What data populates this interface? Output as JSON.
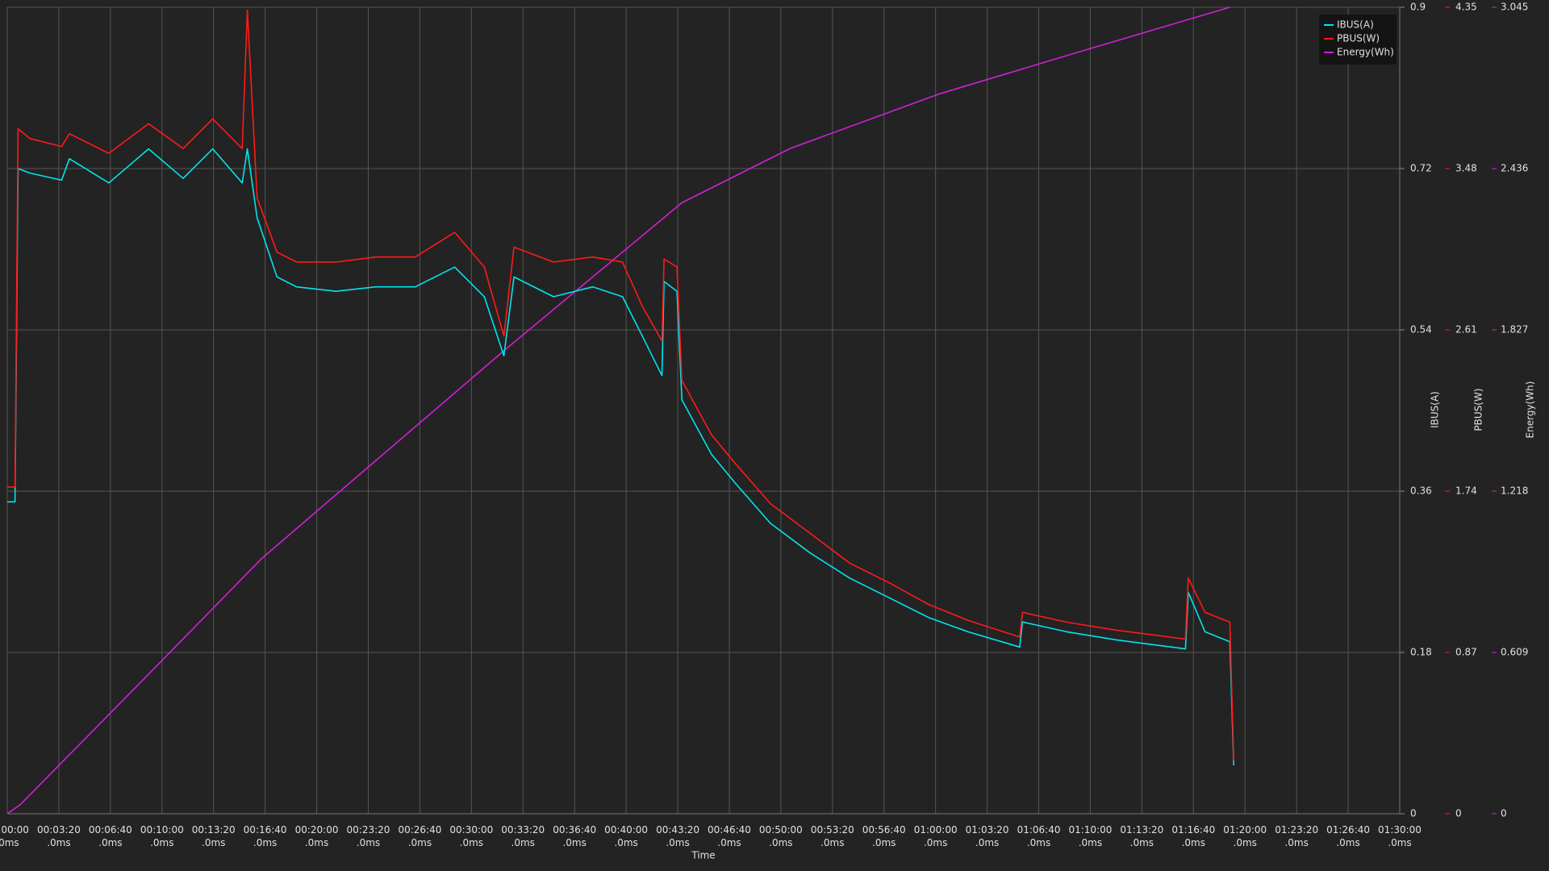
{
  "chart_data": {
    "type": "line",
    "xlabel": "Time",
    "xlim": [
      0,
      5400
    ],
    "xticks": [
      {
        "value": 0,
        "label": "00:00:00\n.0ms"
      },
      {
        "value": 200,
        "label": "00:03:20\n.0ms"
      },
      {
        "value": 400,
        "label": "00:06:40\n.0ms"
      },
      {
        "value": 600,
        "label": "00:10:00\n.0ms"
      },
      {
        "value": 800,
        "label": "00:13:20\n.0ms"
      },
      {
        "value": 1000,
        "label": "00:16:40\n.0ms"
      },
      {
        "value": 1200,
        "label": "00:20:00\n.0ms"
      },
      {
        "value": 1400,
        "label": "00:23:20\n.0ms"
      },
      {
        "value": 1600,
        "label": "00:26:40\n.0ms"
      },
      {
        "value": 1800,
        "label": "00:30:00\n.0ms"
      },
      {
        "value": 2000,
        "label": "00:33:20\n.0ms"
      },
      {
        "value": 2200,
        "label": "00:36:40\n.0ms"
      },
      {
        "value": 2400,
        "label": "00:40:00\n.0ms"
      },
      {
        "value": 2600,
        "label": "00:43:20\n.0ms"
      },
      {
        "value": 2800,
        "label": "00:46:40\n.0ms"
      },
      {
        "value": 3000,
        "label": "00:50:00\n.0ms"
      },
      {
        "value": 3200,
        "label": "00:53:20\n.0ms"
      },
      {
        "value": 3400,
        "label": "00:56:40\n.0ms"
      },
      {
        "value": 3600,
        "label": "01:00:00\n.0ms"
      },
      {
        "value": 3800,
        "label": "01:03:20\n.0ms"
      },
      {
        "value": 4000,
        "label": "01:06:40\n.0ms"
      },
      {
        "value": 4200,
        "label": "01:10:00\n.0ms"
      },
      {
        "value": 4400,
        "label": "01:13:20\n.0ms"
      },
      {
        "value": 4600,
        "label": "01:16:40\n.0ms"
      },
      {
        "value": 4800,
        "label": "01:20:00\n.0ms"
      },
      {
        "value": 5000,
        "label": "01:23:20\n.0ms"
      },
      {
        "value": 5200,
        "label": "01:26:40\n.0ms"
      },
      {
        "value": 5400,
        "label": "01:30:00\n.0ms"
      }
    ],
    "ylabel": "IBUS(A)",
    "ylim": [
      0,
      0.9
    ],
    "yticks": [
      0,
      0.18,
      0.36,
      0.54,
      0.72,
      0.9
    ],
    "y2label": "PBUS(W)",
    "y2lim": [
      0,
      4.35
    ],
    "y2ticks": [
      0,
      0.87,
      1.74,
      2.61,
      3.48,
      4.35
    ],
    "y3label": "Energy(Wh)",
    "y3lim": [
      0,
      3.045
    ],
    "y3ticks": [
      0,
      0.609,
      1.218,
      1.827,
      2.436,
      3.045
    ],
    "grid": true,
    "legend": "upper right",
    "series": [
      {
        "name": "IBUS(A)",
        "color": "#00e5ee",
        "axis": "y",
        "x": [
          0,
          30,
          42,
          88,
          211,
          241,
          394,
          548,
          682,
          797,
          911,
          931,
          969,
          1046,
          1122,
          1275,
          1429,
          1582,
          1735,
          1850,
          1926,
          1965,
          2118,
          2271,
          2386,
          2463,
          2539,
          2547,
          2597,
          2616,
          2731,
          2826,
          2960,
          3114,
          3267,
          3420,
          3573,
          3726,
          3926,
          3937,
          4109,
          4301,
          4569,
          4580,
          4645,
          4741,
          4756
        ],
        "values": [
          0.348,
          0.348,
          0.72,
          0.715,
          0.707,
          0.731,
          0.704,
          0.742,
          0.709,
          0.742,
          0.704,
          0.742,
          0.665,
          0.599,
          0.588,
          0.583,
          0.588,
          0.588,
          0.61,
          0.577,
          0.511,
          0.599,
          0.577,
          0.588,
          0.577,
          0.533,
          0.489,
          0.594,
          0.583,
          0.462,
          0.401,
          0.368,
          0.324,
          0.291,
          0.263,
          0.241,
          0.219,
          0.203,
          0.186,
          0.214,
          0.203,
          0.194,
          0.184,
          0.247,
          0.203,
          0.192,
          0.054
        ]
      },
      {
        "name": "PBUS(W)",
        "color": "#ff1a1a",
        "axis": "y2",
        "x": [
          0,
          30,
          42,
          88,
          211,
          241,
          394,
          548,
          682,
          797,
          911,
          931,
          969,
          1046,
          1122,
          1275,
          1429,
          1582,
          1735,
          1850,
          1926,
          1965,
          2118,
          2271,
          2386,
          2463,
          2539,
          2547,
          2597,
          2616,
          2731,
          2826,
          2960,
          3114,
          3267,
          3420,
          3573,
          3726,
          3926,
          3937,
          4109,
          4301,
          4569,
          4580,
          4645,
          4741,
          4756
        ],
        "values": [
          1.762,
          1.762,
          3.695,
          3.642,
          3.599,
          3.668,
          3.562,
          3.722,
          3.588,
          3.748,
          3.588,
          4.334,
          3.322,
          3.029,
          2.976,
          2.976,
          3.003,
          3.003,
          3.136,
          2.949,
          2.577,
          3.056,
          2.976,
          3.003,
          2.976,
          2.737,
          2.55,
          2.992,
          2.949,
          2.337,
          2.044,
          1.885,
          1.672,
          1.512,
          1.352,
          1.246,
          1.129,
          1.043,
          0.953,
          1.086,
          1.033,
          0.99,
          0.942,
          1.272,
          1.086,
          1.033,
          0.287
        ]
      },
      {
        "name": "Energy(Wh)",
        "color": "#d020d8",
        "axis": "y3",
        "x": [
          0,
          50,
          509,
          988,
          1926,
          2616,
          3037,
          3612,
          4186,
          4741
        ],
        "values": [
          0,
          0.034,
          0.488,
          0.965,
          1.748,
          2.307,
          2.512,
          2.717,
          2.885,
          3.045
        ]
      }
    ]
  }
}
